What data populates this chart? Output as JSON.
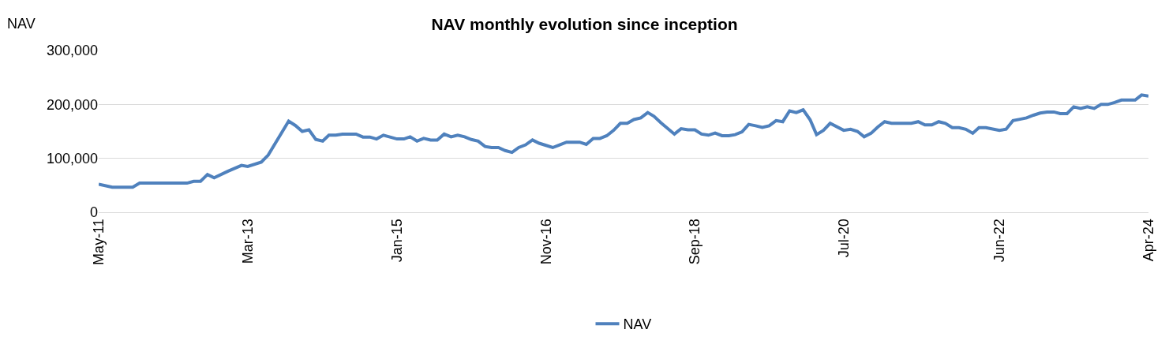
{
  "chart_data": {
    "type": "line",
    "title": "NAV monthly evolution since inception",
    "ylabel": "NAV",
    "x": [
      "2011-05",
      "2011-07",
      "2011-10",
      "2011-11",
      "2012-06",
      "2012-07",
      "2012-08",
      "2012-09",
      "2012-10",
      "2012-12",
      "2013-02",
      "2013-03",
      "2013-05",
      "2013-06",
      "2013-09",
      "2013-10",
      "2013-11",
      "2013-12",
      "2014-01",
      "2014-02",
      "2014-03",
      "2014-04",
      "2014-05",
      "2014-07",
      "2014-08",
      "2014-09",
      "2014-10",
      "2014-11",
      "2015-01",
      "2015-02",
      "2015-03",
      "2015-04",
      "2015-05",
      "2015-06",
      "2015-07",
      "2015-08",
      "2015-09",
      "2015-10",
      "2015-11",
      "2015-12",
      "2016-01",
      "2016-02",
      "2016-03",
      "2016-04",
      "2016-05",
      "2016-06",
      "2016-07",
      "2016-08",
      "2016-09",
      "2016-10",
      "2016-11",
      "2016-12",
      "2017-01",
      "2017-02",
      "2017-04",
      "2017-05",
      "2017-06",
      "2017-07",
      "2017-08",
      "2017-09",
      "2017-10",
      "2017-11",
      "2017-12",
      "2018-01",
      "2018-02",
      "2018-03",
      "2018-04",
      "2018-06",
      "2018-07",
      "2018-08",
      "2018-09",
      "2018-10",
      "2018-11",
      "2018-12",
      "2019-01",
      "2019-02",
      "2019-03",
      "2019-04",
      "2019-05",
      "2019-06",
      "2019-07",
      "2019-08",
      "2019-09",
      "2019-10",
      "2019-11",
      "2019-12",
      "2020-01",
      "2020-02",
      "2020-03",
      "2020-04",
      "2020-05",
      "2020-07",
      "2020-08",
      "2020-09",
      "2020-10",
      "2020-11",
      "2020-12",
      "2021-01",
      "2021-02",
      "2021-05",
      "2021-06",
      "2021-07",
      "2021-08",
      "2021-09",
      "2021-10",
      "2021-11",
      "2021-12",
      "2022-01",
      "2022-02",
      "2022-03",
      "2022-04",
      "2022-06",
      "2022-07",
      "2022-08",
      "2022-09",
      "2022-10",
      "2022-11",
      "2022-12",
      "2023-01",
      "2023-02",
      "2023-03",
      "2023-04",
      "2023-05",
      "2023-06",
      "2023-07",
      "2023-08",
      "2023-09",
      "2023-10",
      "2023-11",
      "2023-12",
      "2024-02",
      "2024-03",
      "2024-04"
    ],
    "series": [
      {
        "name": "NAV",
        "color": "#4f81bd",
        "values": [
          52000,
          46500,
          46500,
          54000,
          54000,
          57500,
          57500,
          70000,
          64000,
          76000,
          87000,
          85000,
          93000,
          106000,
          169000,
          161000,
          150000,
          153000,
          135000,
          132000,
          143000,
          143000,
          145000,
          145000,
          139500,
          139500,
          136000,
          143000,
          136000,
          136000,
          140000,
          132000,
          137000,
          134000,
          134000,
          145000,
          140000,
          143000,
          140000,
          135000,
          132000,
          122000,
          120000,
          120000,
          114500,
          111000,
          120000,
          125000,
          134000,
          128000,
          124000,
          120000,
          125000,
          130000,
          130000,
          126000,
          137000,
          137000,
          142000,
          152000,
          165000,
          165000,
          172000,
          175000,
          185000,
          178000,
          166000,
          145000,
          155000,
          153000,
          153000,
          145000,
          143000,
          147000,
          142000,
          142000,
          144000,
          149000,
          163000,
          160500,
          157500,
          160500,
          170000,
          168000,
          188000,
          185000,
          190000,
          171500,
          144000,
          152000,
          165000,
          152000,
          154000,
          150000,
          140000,
          146500,
          158000,
          168000,
          165000,
          165000,
          168000,
          162000,
          162000,
          168000,
          165000,
          157000,
          157000,
          154000,
          146500,
          157000,
          157000,
          152000,
          154000,
          170000,
          172500,
          175000,
          180000,
          184000,
          186000,
          186000,
          183000,
          183000,
          195500,
          192500,
          195500,
          192500,
          200000,
          200000,
          203500,
          208000,
          208000,
          217500,
          215500
        ]
      }
    ],
    "xlim": [
      "2011-05",
      "2024-04"
    ],
    "xticks": [
      {
        "value": "2011-05",
        "label": "May-11"
      },
      {
        "value": "2013-03",
        "label": "Mar-13"
      },
      {
        "value": "2015-01",
        "label": "Jan-15"
      },
      {
        "value": "2016-11",
        "label": "Nov-16"
      },
      {
        "value": "2018-09",
        "label": "Sep-18"
      },
      {
        "value": "2020-07",
        "label": "Jul-20"
      },
      {
        "value": "2022-06",
        "label": "Jun-22"
      },
      {
        "value": "2024-04",
        "label": "Apr-24"
      }
    ],
    "ylim": [
      0,
      300000
    ],
    "yticks": [
      {
        "value": 0,
        "label": "0"
      },
      {
        "value": 100000,
        "label": "100,000"
      },
      {
        "value": 200000,
        "label": "200,000"
      },
      {
        "value": 300000,
        "label": "300,000"
      }
    ],
    "grid": "y",
    "legend": "bottom",
    "line_style": "solid",
    "marker": "none"
  }
}
